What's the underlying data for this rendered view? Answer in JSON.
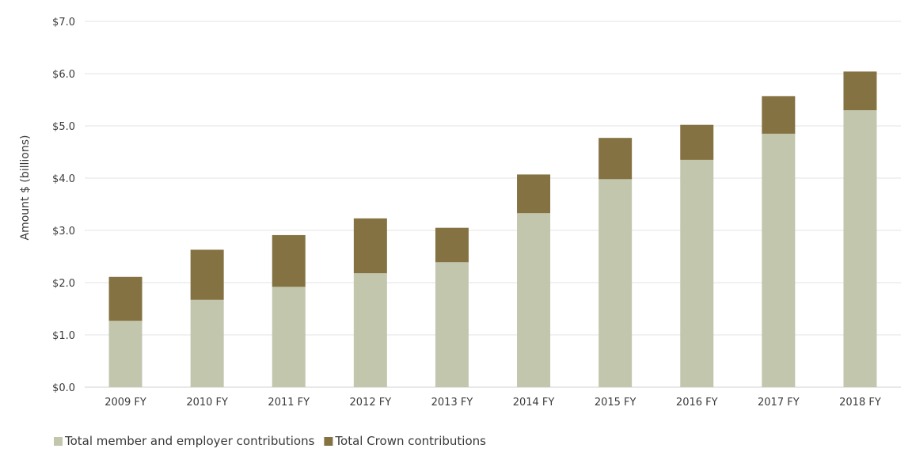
{
  "chart_data": {
    "type": "bar",
    "stacked": true,
    "categories": [
      "2009 FY",
      "2010 FY",
      "2011 FY",
      "2012 FY",
      "2013 FY",
      "2014 FY",
      "2015 FY",
      "2016 FY",
      "2017 FY",
      "2018 FY"
    ],
    "series": [
      {
        "name": "Total member and employer contributions",
        "color": "#c2c6ad",
        "values": [
          1.27,
          1.67,
          1.92,
          2.18,
          2.39,
          3.33,
          3.98,
          4.35,
          4.85,
          5.3
        ]
      },
      {
        "name": "Total Crown contributions",
        "color": "#857242",
        "values": [
          0.84,
          0.96,
          0.99,
          1.05,
          0.66,
          0.74,
          0.79,
          0.67,
          0.72,
          0.74
        ]
      }
    ],
    "ylabel": "Amount $ (billions)",
    "xlabel": "",
    "title": "",
    "ylim": [
      0,
      7
    ],
    "yticks": [
      0,
      1,
      2,
      3,
      4,
      5,
      6,
      7
    ],
    "ytick_labels": [
      "$0.0",
      "$1.0",
      "$2.0",
      "$3.0",
      "$4.0",
      "$5.0",
      "$6.0",
      "$7.0"
    ],
    "grid": true,
    "legend_position": "bottom-left",
    "gridline_color": "#e3e3e3",
    "text_color": "#3a3a3a"
  }
}
